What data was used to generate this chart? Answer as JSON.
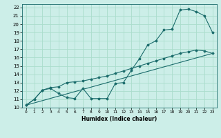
{
  "title": "",
  "xlabel": "Humidex (Indice chaleur)",
  "background_color": "#cceee8",
  "line_color": "#1a6b6b",
  "grid_color": "#aaddcc",
  "xlim": [
    -0.5,
    23.5
  ],
  "ylim": [
    10,
    22.4
  ],
  "xticks": [
    0,
    1,
    2,
    3,
    4,
    5,
    6,
    7,
    8,
    9,
    10,
    11,
    12,
    13,
    14,
    15,
    16,
    17,
    18,
    19,
    20,
    21,
    22,
    23
  ],
  "yticks": [
    10,
    11,
    12,
    13,
    14,
    15,
    16,
    17,
    18,
    19,
    20,
    21,
    22
  ],
  "line1_x": [
    0,
    1,
    2,
    3,
    4,
    5,
    6,
    7,
    8,
    9,
    10,
    11,
    12,
    13,
    14,
    15,
    16,
    17,
    18,
    19,
    20,
    21,
    22,
    23
  ],
  "line1_y": [
    10.3,
    11.0,
    12.1,
    12.3,
    11.7,
    11.2,
    11.1,
    12.3,
    11.1,
    11.1,
    11.1,
    12.9,
    13.0,
    14.5,
    15.9,
    17.5,
    18.0,
    19.3,
    19.4,
    21.7,
    21.8,
    21.5,
    21.0,
    19.0
  ],
  "line2_x": [
    0,
    1,
    2,
    3,
    4,
    5,
    6,
    7,
    8,
    9,
    10,
    11,
    12,
    13,
    14,
    15,
    16,
    17,
    18,
    19,
    20,
    21,
    22,
    23
  ],
  "line2_y": [
    10.3,
    11.0,
    12.1,
    12.4,
    12.5,
    13.0,
    13.1,
    13.2,
    13.4,
    13.6,
    13.8,
    14.1,
    14.4,
    14.7,
    15.0,
    15.3,
    15.6,
    15.9,
    16.2,
    16.5,
    16.7,
    16.9,
    16.8,
    16.5
  ],
  "line3_x": [
    0,
    23
  ],
  "line3_y": [
    10.3,
    16.5
  ]
}
